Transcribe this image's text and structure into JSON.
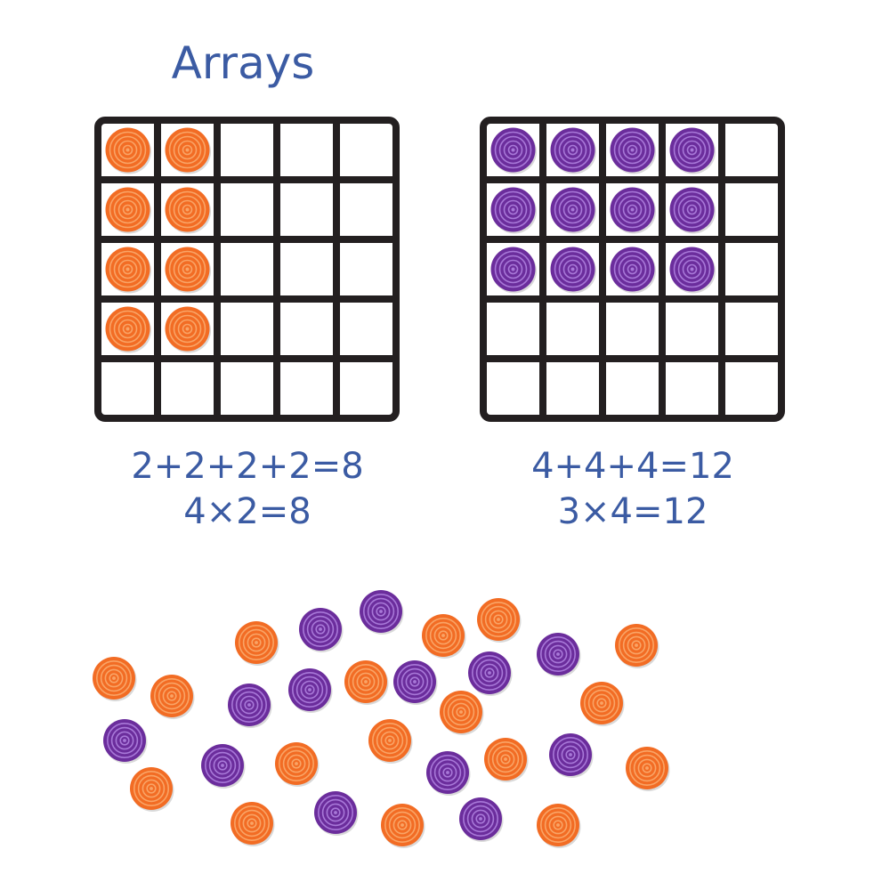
{
  "title": "Arrays",
  "colors": {
    "text": "#3b5ba3",
    "orange": "#f26c24",
    "orange_ring": "#f9a466",
    "purple": "#6b2d9c",
    "purple_ring": "#a878d8",
    "grid": "#231f20"
  },
  "arrays": [
    {
      "grid_rows": 5,
      "grid_cols": 5,
      "filled_rows": 4,
      "filled_cols": 2,
      "counter_color": "orange",
      "equations": [
        "2+2+2+2=8",
        "4×2=8"
      ]
    },
    {
      "grid_rows": 5,
      "grid_cols": 5,
      "filled_rows": 3,
      "filled_cols": 4,
      "counter_color": "purple",
      "equations": [
        "4+4+4=12",
        "3×4=12"
      ]
    }
  ],
  "loose_counters": {
    "orange": 17,
    "purple": 13
  }
}
